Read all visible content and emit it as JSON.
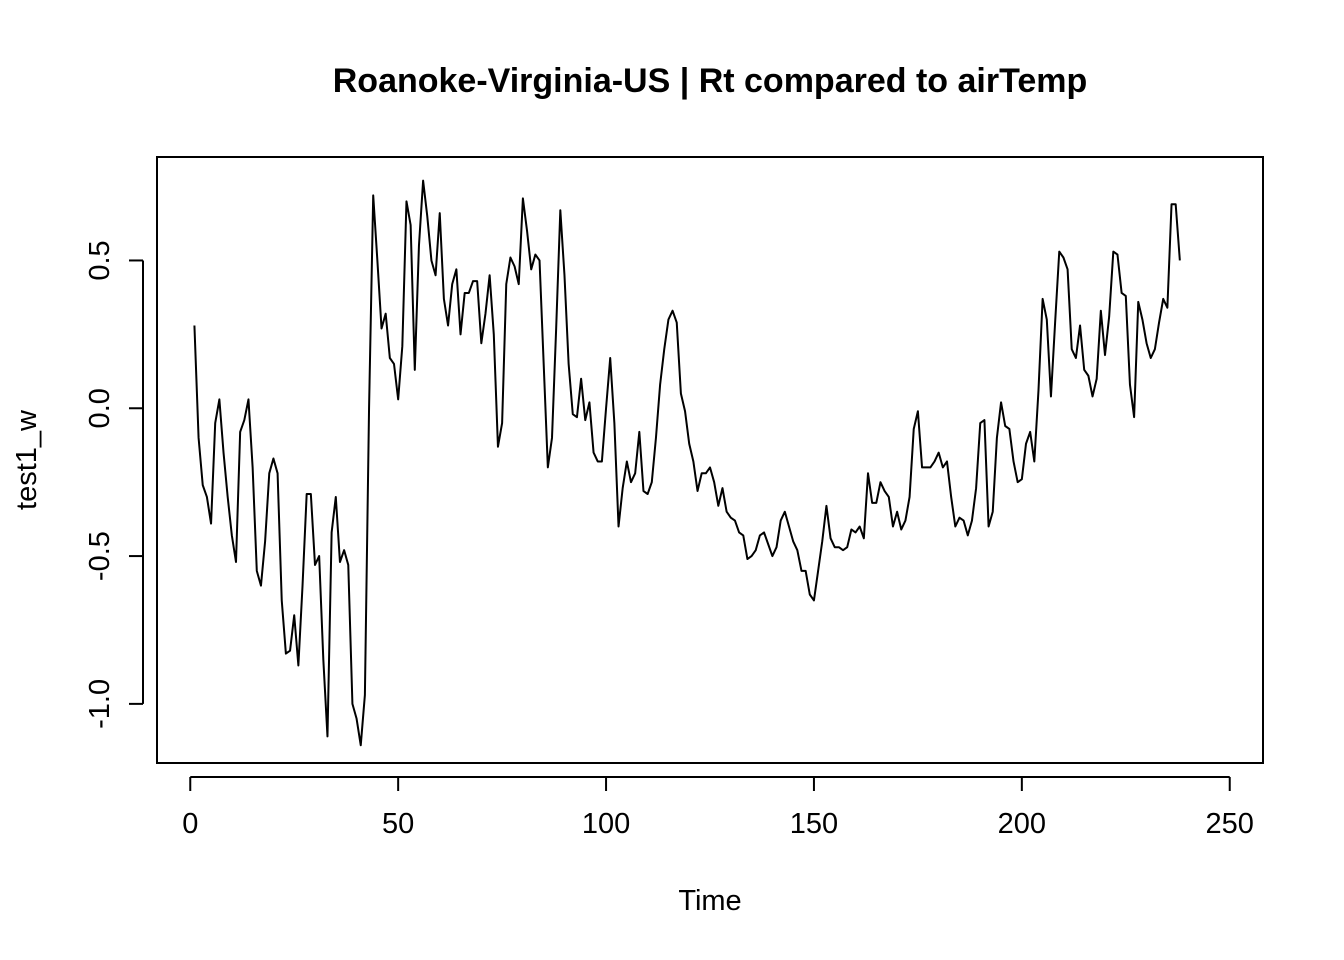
{
  "chart_data": {
    "type": "line",
    "title": "Roanoke-Virginia-US | Rt compared to airTemp",
    "xlabel": "Time",
    "ylabel": "test1_w",
    "xlim": [
      -8,
      258
    ],
    "ylim": [
      -1.2,
      0.85
    ],
    "x_ticks": [
      0,
      50,
      100,
      150,
      200,
      250
    ],
    "y_ticks": [
      -1.0,
      -0.5,
      0.0,
      0.5
    ],
    "y_tick_labels": [
      "-1.0",
      "-0.5",
      "0.0",
      "0.5"
    ],
    "grid": false,
    "line_color": "#000000",
    "x_start": 1,
    "series": [
      {
        "values": [
          0.28,
          -0.1,
          -0.26,
          -0.3,
          -0.39,
          -0.05,
          0.03,
          -0.15,
          -0.3,
          -0.43,
          -0.52,
          -0.08,
          -0.04,
          0.03,
          -0.2,
          -0.55,
          -0.6,
          -0.45,
          -0.22,
          -0.17,
          -0.22,
          -0.65,
          -0.83,
          -0.82,
          -0.7,
          -0.87,
          -0.6,
          -0.29,
          -0.29,
          -0.53,
          -0.5,
          -0.85,
          -1.11,
          -0.42,
          -0.3,
          -0.52,
          -0.48,
          -0.53,
          -1.0,
          -1.05,
          -1.14,
          -0.97,
          0.0,
          0.72,
          0.5,
          0.27,
          0.32,
          0.17,
          0.15,
          0.03,
          0.21,
          0.7,
          0.62,
          0.13,
          0.55,
          0.77,
          0.65,
          0.5,
          0.45,
          0.66,
          0.37,
          0.28,
          0.42,
          0.47,
          0.25,
          0.39,
          0.39,
          0.43,
          0.43,
          0.22,
          0.32,
          0.45,
          0.25,
          -0.13,
          -0.05,
          0.42,
          0.51,
          0.48,
          0.42,
          0.71,
          0.6,
          0.47,
          0.52,
          0.5,
          0.15,
          -0.2,
          -0.1,
          0.27,
          0.67,
          0.45,
          0.15,
          -0.02,
          -0.03,
          0.1,
          -0.04,
          0.02,
          -0.15,
          -0.18,
          -0.18,
          0.0,
          0.17,
          -0.05,
          -0.4,
          -0.27,
          -0.18,
          -0.25,
          -0.22,
          -0.08,
          -0.28,
          -0.29,
          -0.25,
          -0.1,
          0.08,
          0.2,
          0.3,
          0.33,
          0.29,
          0.05,
          -0.01,
          -0.12,
          -0.18,
          -0.28,
          -0.22,
          -0.22,
          -0.2,
          -0.25,
          -0.33,
          -0.27,
          -0.35,
          -0.37,
          -0.38,
          -0.42,
          -0.43,
          -0.51,
          -0.5,
          -0.48,
          -0.43,
          -0.42,
          -0.46,
          -0.5,
          -0.47,
          -0.38,
          -0.35,
          -0.4,
          -0.45,
          -0.48,
          -0.55,
          -0.55,
          -0.63,
          -0.65,
          -0.55,
          -0.45,
          -0.33,
          -0.44,
          -0.47,
          -0.47,
          -0.48,
          -0.47,
          -0.41,
          -0.42,
          -0.4,
          -0.44,
          -0.22,
          -0.32,
          -0.32,
          -0.25,
          -0.28,
          -0.3,
          -0.4,
          -0.35,
          -0.41,
          -0.38,
          -0.3,
          -0.07,
          -0.01,
          -0.2,
          -0.2,
          -0.2,
          -0.18,
          -0.15,
          -0.2,
          -0.18,
          -0.3,
          -0.4,
          -0.37,
          -0.38,
          -0.43,
          -0.38,
          -0.27,
          -0.05,
          -0.04,
          -0.4,
          -0.35,
          -0.1,
          0.02,
          -0.06,
          -0.07,
          -0.18,
          -0.25,
          -0.24,
          -0.12,
          -0.08,
          -0.18,
          0.06,
          0.37,
          0.3,
          0.04,
          0.29,
          0.53,
          0.51,
          0.47,
          0.2,
          0.17,
          0.28,
          0.13,
          0.11,
          0.04,
          0.1,
          0.33,
          0.18,
          0.31,
          0.53,
          0.52,
          0.39,
          0.38,
          0.08,
          -0.03,
          0.36,
          0.3,
          0.22,
          0.17,
          0.2,
          0.29,
          0.37,
          0.34,
          0.69,
          0.69,
          0.5
        ]
      }
    ]
  }
}
